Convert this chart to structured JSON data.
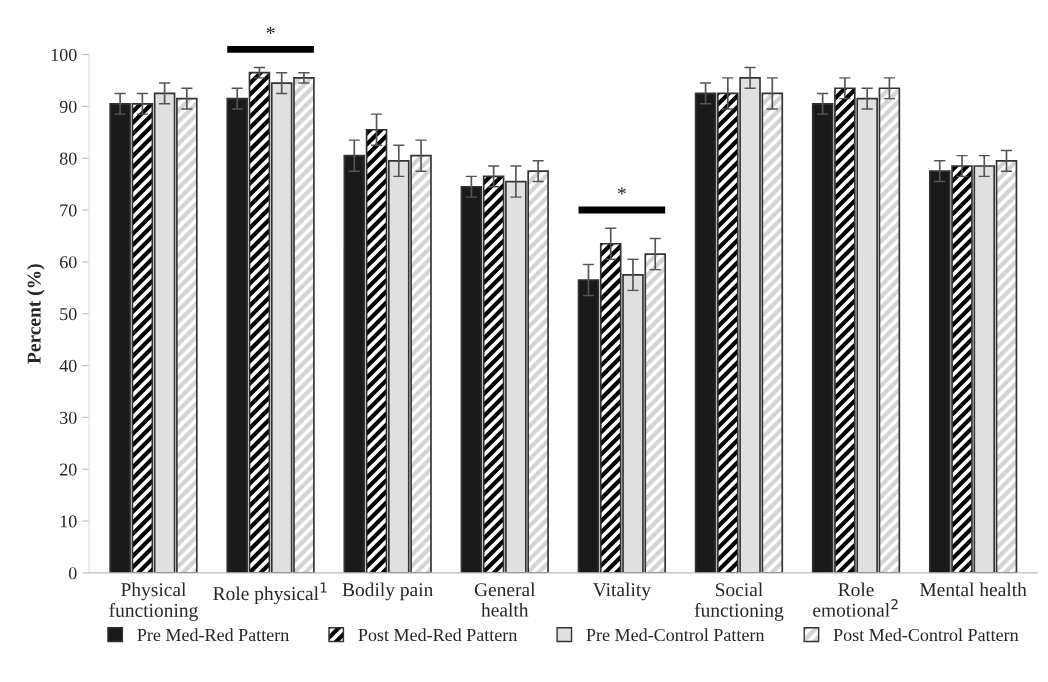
{
  "chart_data": {
    "type": "bar",
    "ylabel": "Percent (%)",
    "categories": [
      "Physical\nfunctioning",
      "Role physical$^{1}$",
      "Bodily pain",
      "General\nhealth",
      "Vitality",
      "Social\nfunctioning",
      "Role\nemotional$^{2}$",
      "Mental health"
    ],
    "series": [
      {
        "name": "Pre Med-Red Pattern",
        "color": "#1a1a1a",
        "values": [
          90.5,
          91.5,
          80.5,
          74.5,
          56.5,
          92.5,
          90.5,
          77.5
        ],
        "errors": [
          2,
          2,
          3,
          2,
          3,
          2,
          2,
          2
        ]
      },
      {
        "name": "Post Med-Red Pattern",
        "color": "#000000",
        "values": [
          90.5,
          96.5,
          85.5,
          76.5,
          63.5,
          92.5,
          93.5,
          78.5
        ],
        "errors": [
          2,
          1,
          3,
          2,
          3,
          3,
          2,
          2
        ]
      },
      {
        "name": "Pre Med-Control Pattern",
        "color": "#e0e0e0",
        "values": [
          92.5,
          94.5,
          79.5,
          75.5,
          57.5,
          95.5,
          91.5,
          78.5
        ],
        "errors": [
          2,
          2,
          3,
          3,
          3,
          2,
          2,
          2
        ]
      },
      {
        "name": "Post Med-Control Pattern",
        "color": "#d4d4d4",
        "values": [
          91.5,
          95.5,
          80.5,
          77.5,
          61.5,
          92.5,
          93.5,
          79.5
        ],
        "errors": [
          2,
          1,
          3,
          2,
          3,
          3,
          2,
          2
        ]
      }
    ],
    "annotations": [
      "*",
      "*"
    ],
    "ylim": [
      0,
      100
    ],
    "yticks": [
      0,
      10,
      20,
      30,
      40,
      50,
      60,
      70,
      80,
      90,
      100
    ],
    "grid": false,
    "legend": "bottom"
  }
}
